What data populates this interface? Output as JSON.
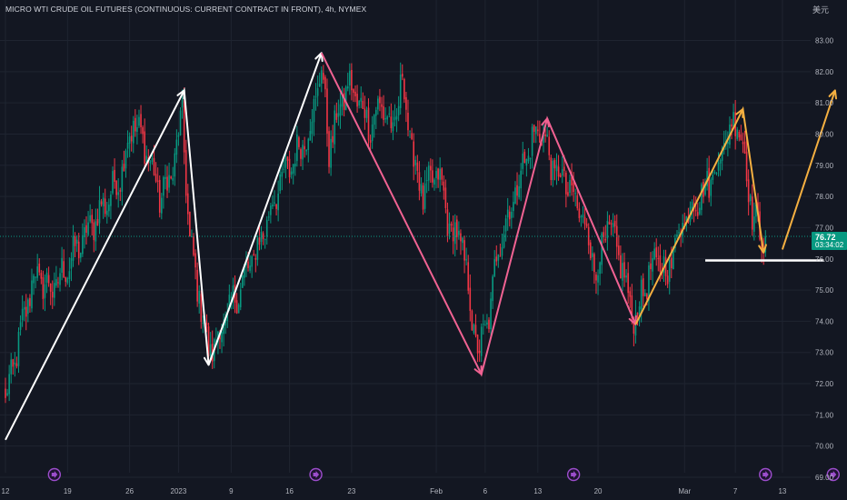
{
  "header": {
    "title": "MICRO WTI CRUDE OIL FUTURES (CONTINUOUS: CURRENT CONTRACT IN FRONT), 4h, NYMEX",
    "currency": "美元"
  },
  "price_tag": {
    "value": "76.72",
    "countdown": "03:34:02"
  },
  "colors": {
    "background": "#131722",
    "grid": "#1f2430",
    "up": "#089981",
    "down": "#f23645",
    "wave_white": "#ffffff",
    "wave_pink": "#f06292",
    "wave_orange": "#f5b041",
    "event_icon": "#9c4dcc"
  },
  "chart_data": {
    "type": "candlestick",
    "title": "MICRO WTI CRUDE OIL FUTURES (CONTINUOUS: CURRENT CONTRACT IN FRONT), 4h, NYMEX",
    "timeframe": "4h",
    "exchange": "NYMEX",
    "ylim": [
      69.0,
      83.5
    ],
    "y_ticks": [
      83.0,
      82.0,
      81.0,
      80.0,
      79.0,
      78.0,
      77.0,
      76.0,
      75.0,
      74.0,
      73.0,
      72.0,
      71.0,
      70.0,
      69.0
    ],
    "x_ticks": [
      {
        "label": "12",
        "idx": 0
      },
      {
        "label": "19",
        "idx": 33
      },
      {
        "label": "26",
        "idx": 66
      },
      {
        "label": "2023",
        "idx": 92
      },
      {
        "label": "9",
        "idx": 120
      },
      {
        "label": "16",
        "idx": 151
      },
      {
        "label": "23",
        "idx": 184
      },
      {
        "label": "Feb",
        "idx": 229
      },
      {
        "label": "6",
        "idx": 255
      },
      {
        "label": "13",
        "idx": 283
      },
      {
        "label": "20",
        "idx": 315
      },
      {
        "label": "Mar",
        "idx": 361
      },
      {
        "label": "7",
        "idx": 388
      },
      {
        "label": "13",
        "idx": 413
      }
    ],
    "last_price": 76.72,
    "current_price_line": 76.72,
    "anchors": [
      [
        0,
        71.4
      ],
      [
        15,
        75.5
      ],
      [
        25,
        75.0
      ],
      [
        45,
        77.0
      ],
      [
        60,
        78.5
      ],
      [
        68,
        80.4
      ],
      [
        75,
        79.5
      ],
      [
        82,
        78.0
      ],
      [
        88,
        78.6
      ],
      [
        94,
        80.6
      ],
      [
        98,
        76.5
      ],
      [
        104,
        74.5
      ],
      [
        108,
        73.0
      ],
      [
        113,
        73.5
      ],
      [
        118,
        74.2
      ],
      [
        124,
        75.0
      ],
      [
        135,
        76.5
      ],
      [
        145,
        78.3
      ],
      [
        155,
        79.4
      ],
      [
        162,
        80.2
      ],
      [
        168,
        82.2
      ],
      [
        172,
        79.5
      ],
      [
        177,
        80.7
      ],
      [
        182,
        81.6
      ],
      [
        188,
        81.0
      ],
      [
        194,
        80.3
      ],
      [
        200,
        81.0
      ],
      [
        206,
        80.0
      ],
      [
        211,
        81.8
      ],
      [
        216,
        79.5
      ],
      [
        222,
        78.0
      ],
      [
        230,
        78.8
      ],
      [
        236,
        77.0
      ],
      [
        243,
        76.5
      ],
      [
        248,
        74.0
      ],
      [
        252,
        73.0
      ],
      [
        258,
        74.5
      ],
      [
        262,
        76.5
      ],
      [
        268,
        77.5
      ],
      [
        274,
        78.8
      ],
      [
        280,
        79.8
      ],
      [
        285,
        80.2
      ],
      [
        290,
        79.0
      ],
      [
        297,
        78.5
      ],
      [
        303,
        77.8
      ],
      [
        309,
        77.0
      ],
      [
        314,
        75.5
      ],
      [
        320,
        77.0
      ],
      [
        326,
        76.2
      ],
      [
        332,
        74.5
      ],
      [
        335,
        74.1
      ],
      [
        340,
        75.2
      ],
      [
        347,
        76.0
      ],
      [
        352,
        75.5
      ],
      [
        357,
        76.8
      ],
      [
        365,
        77.8
      ],
      [
        372,
        78.2
      ],
      [
        378,
        79.0
      ],
      [
        384,
        80.0
      ],
      [
        389,
        80.6
      ],
      [
        393,
        79.2
      ],
      [
        397,
        77.5
      ],
      [
        401,
        76.8
      ],
      [
        404,
        76.7
      ]
    ],
    "key_level": 75.95,
    "annotations": [
      {
        "type": "polyline",
        "color": "white",
        "points": [
          [
            0,
            70.2
          ],
          [
            95,
            81.4
          ],
          [
            108,
            72.6
          ],
          [
            168,
            82.6
          ]
        ]
      },
      {
        "type": "polyline",
        "color": "pink",
        "points": [
          [
            168,
            82.6
          ],
          [
            253,
            72.3
          ],
          [
            288,
            80.5
          ],
          [
            335,
            73.9
          ]
        ]
      },
      {
        "type": "polyline",
        "color": "orange",
        "points": [
          [
            335,
            73.9
          ],
          [
            392,
            80.8
          ],
          [
            403,
            76.2
          ]
        ]
      },
      {
        "type": "arrow",
        "color": "orange",
        "from": [
          413,
          76.3
        ],
        "to": [
          441,
          81.4
        ]
      },
      {
        "type": "hline",
        "color": "white",
        "value": 75.95,
        "from_idx": 372,
        "to_idx": 435
      }
    ],
    "event_markers_idx": [
      26,
      165,
      302,
      404,
      440
    ]
  }
}
